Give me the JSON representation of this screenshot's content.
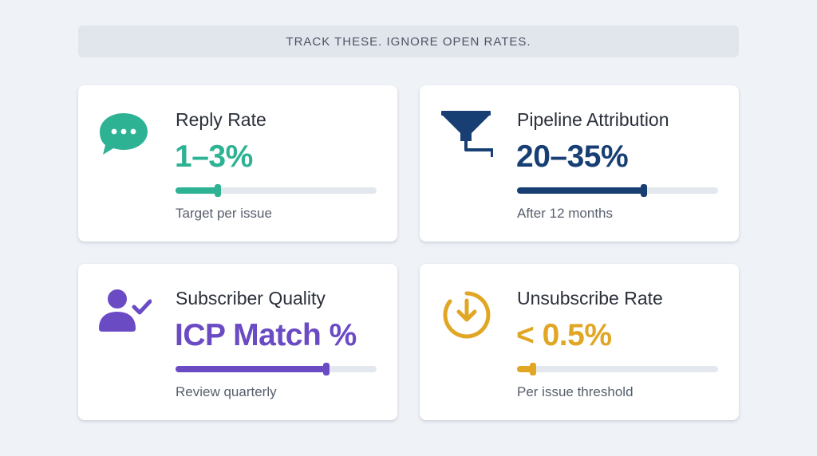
{
  "banner": {
    "text": "TRACK THESE. IGNORE OPEN RATES."
  },
  "cards": [
    {
      "title": "Reply Rate",
      "value": "1–3%",
      "caption": "Target per issue",
      "icon": "chat-bubble-icon",
      "color": "#2db394",
      "progress": 0.21
    },
    {
      "title": "Pipeline Attribution",
      "value": "20–35%",
      "caption": "After 12 months",
      "icon": "funnel-icon",
      "color": "#173f73",
      "progress": 0.63
    },
    {
      "title": "Subscriber Quality",
      "value": "ICP Match %",
      "caption": "Review quarterly",
      "icon": "user-check-icon",
      "color": "#6a4bc4",
      "progress": 0.75
    },
    {
      "title": "Unsubscribe Rate",
      "value": "< 0.5%",
      "caption": "Per issue threshold",
      "icon": "download-circle-icon",
      "color": "#e0a624",
      "progress": 0.08
    }
  ]
}
